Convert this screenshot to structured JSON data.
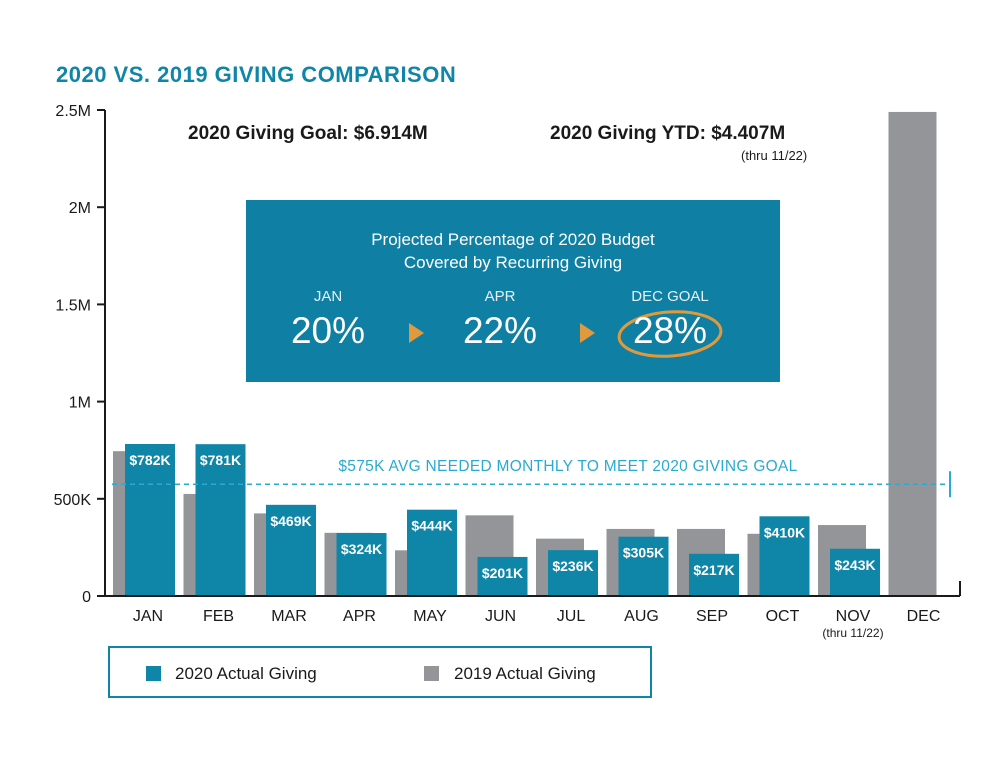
{
  "chart_data": {
    "type": "bar",
    "title": "2020 VS. 2019 GIVING COMPARISON",
    "categories": [
      "JAN",
      "FEB",
      "MAR",
      "APR",
      "MAY",
      "JUN",
      "JUL",
      "AUG",
      "SEP",
      "OCT",
      "NOV",
      "DEC"
    ],
    "category_notes": {
      "NOV": "(thru 11/22)"
    },
    "series": [
      {
        "name": "2019 Actual Giving",
        "color": "#939598",
        "values": [
          745000,
          525000,
          425000,
          325000,
          235000,
          415000,
          295000,
          345000,
          345000,
          320000,
          365000,
          2490000
        ]
      },
      {
        "name": "2020 Actual Giving",
        "color": "#0f86a8",
        "values": [
          782000,
          781000,
          469000,
          324000,
          444000,
          201000,
          236000,
          305000,
          217000,
          410000,
          243000,
          null
        ],
        "labels": [
          "$782K",
          "$781K",
          "$469K",
          "$324K",
          "$444K",
          "$201K",
          "$236K",
          "$305K",
          "$217K",
          "$410K",
          "$243K",
          ""
        ]
      }
    ],
    "ylim": [
      0,
      2500000
    ],
    "yticks": [
      {
        "value": 0,
        "label": "0"
      },
      {
        "value": 500000,
        "label": "500K"
      },
      {
        "value": 1000000,
        "label": "1M"
      },
      {
        "value": 1500000,
        "label": "1.5M"
      },
      {
        "value": 2000000,
        "label": "2M"
      },
      {
        "value": 2500000,
        "label": "2.5M"
      }
    ],
    "reference_line": {
      "value": 575000,
      "label": "$575K AVG NEEDED MONTHLY TO MEET 2020 GIVING GOAL",
      "color": "#29aad3"
    },
    "legend": {
      "placement": "bottom-left",
      "entries": [
        {
          "label": "2020 Actual Giving",
          "color": "#0f86a8"
        },
        {
          "label": "2019 Actual Giving",
          "color": "#939598"
        }
      ]
    },
    "annotations": {
      "goal": "2020 Giving Goal: $6.914M",
      "ytd": "2020 Giving YTD: $4.407M",
      "ytd_note": "(thru 11/22)"
    }
  },
  "callout": {
    "title_line1": "Projected Percentage of 2020 Budget",
    "title_line2": "Covered by Recurring Giving",
    "stages": [
      {
        "label": "JAN",
        "value": "20%"
      },
      {
        "label": "APR",
        "value": "22%"
      },
      {
        "label": "DEC GOAL",
        "value": "28%"
      }
    ],
    "background": "#0f7fa4",
    "accent": "#e19a3b"
  }
}
